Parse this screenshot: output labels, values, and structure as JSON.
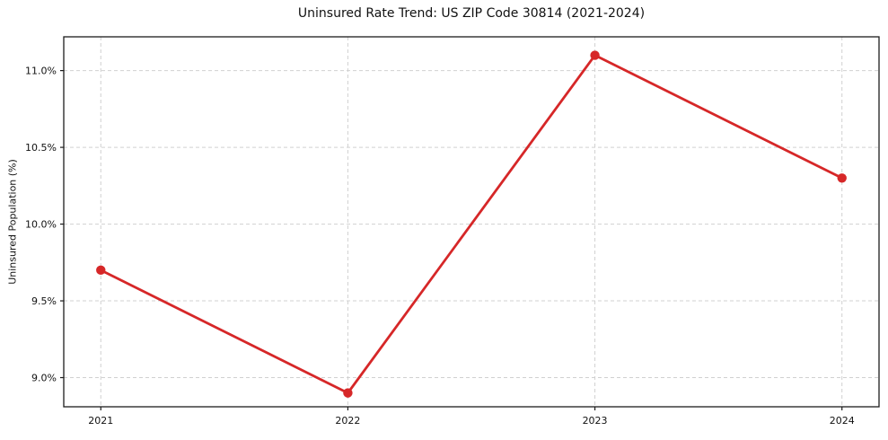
{
  "chart_data": {
    "type": "line",
    "title": "Uninsured Rate Trend: US ZIP Code 30814 (2021-2024)",
    "xlabel": "",
    "ylabel": "Uninsured Population (%)",
    "categories": [
      2021,
      2022,
      2023,
      2024
    ],
    "xtick_labels": [
      "2021",
      "2022",
      "2023",
      "2024"
    ],
    "series": [
      {
        "name": "Uninsured Population (%)",
        "values": [
          9.7,
          8.9,
          11.1,
          10.3
        ],
        "color": "#d62728",
        "marker": "circle"
      }
    ],
    "ytick_values": [
      9.0,
      9.5,
      10.0,
      10.5,
      11.0
    ],
    "ytick_labels": [
      "9.0%",
      "9.5%",
      "10.0%",
      "10.5%",
      "11.0%"
    ],
    "ylim": [
      8.81,
      11.22
    ],
    "xlim": [
      2020.85,
      2024.15
    ],
    "grid": true,
    "grid_style": "dashed",
    "legend_position": "none",
    "colors": {
      "line": "#d62728",
      "grid": "#d0d0d0",
      "axis": "#1c1c1c",
      "text": "#111111",
      "background": "#ffffff"
    }
  }
}
